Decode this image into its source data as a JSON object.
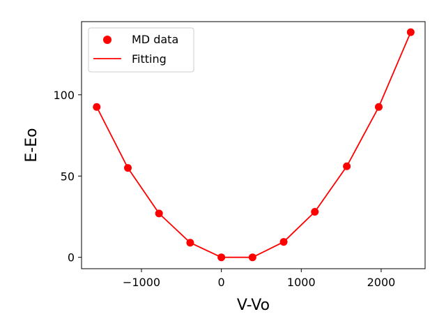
{
  "chart_data": {
    "type": "scatter",
    "title": "",
    "xlabel": "V-Vo",
    "ylabel": "E-Eo",
    "xlim": [
      -1750,
      2550
    ],
    "ylim": [
      -7,
      145
    ],
    "xticks": [
      -1000,
      0,
      1000,
      2000
    ],
    "xtick_labels": [
      "−1000",
      "0",
      "1000",
      "2000"
    ],
    "yticks": [
      0,
      50,
      100
    ],
    "ytick_labels": [
      "0",
      "50",
      "100"
    ],
    "grid": false,
    "legend_position": "top-left",
    "series": [
      {
        "name": "MD data",
        "kind": "scatter",
        "color": "#ff0000",
        "x": [
          -1560,
          -1170,
          -780,
          -390,
          0,
          390,
          780,
          1170,
          1570,
          1970,
          2370
        ],
        "y": [
          92.5,
          55,
          27,
          9,
          0,
          0,
          9.5,
          28,
          56,
          92.5,
          138.5
        ]
      },
      {
        "name": "Fitting",
        "kind": "line",
        "color": "#ff0000",
        "x": [
          -1560,
          -1170,
          -780,
          -390,
          0,
          390,
          780,
          1170,
          1570,
          1970,
          2370
        ],
        "y": [
          92.5,
          55,
          27,
          9,
          0,
          0,
          9.5,
          28,
          56,
          92.5,
          138.5
        ]
      }
    ]
  }
}
